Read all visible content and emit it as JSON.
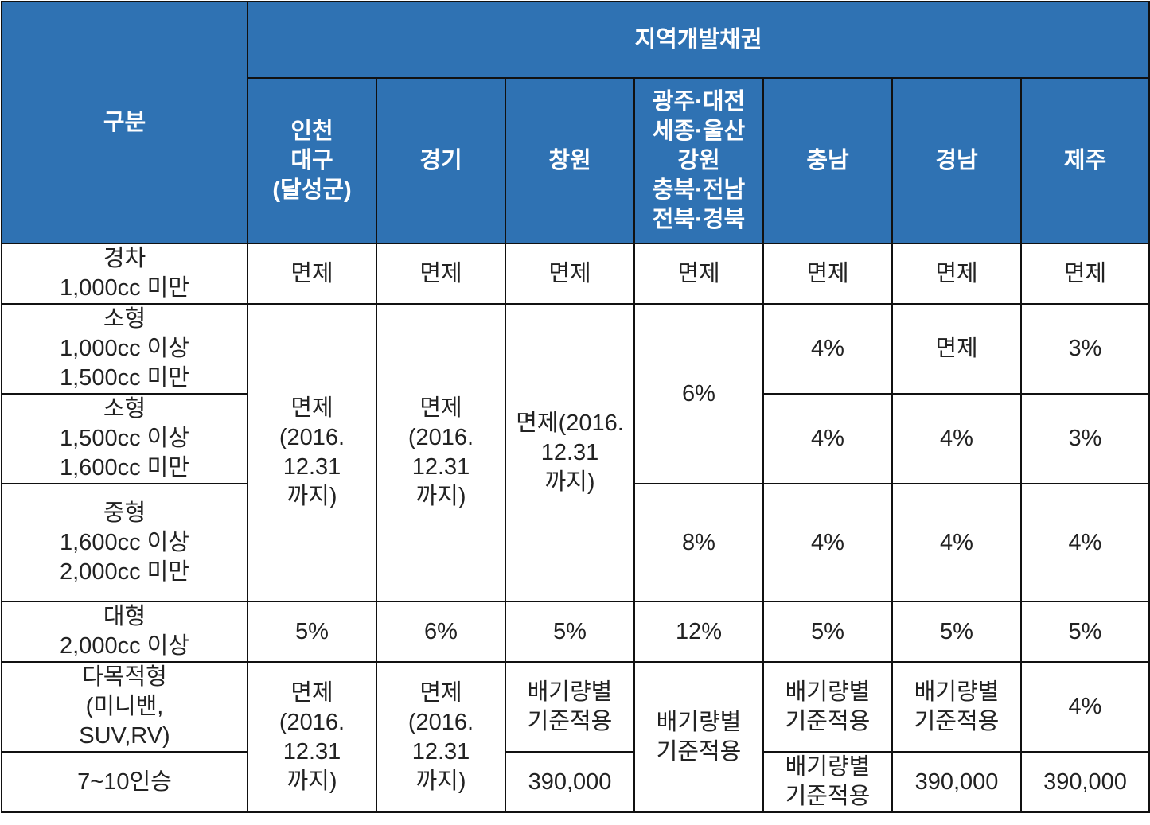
{
  "table": {
    "corner_header": "구분",
    "group_header": "지역개발채권",
    "region_headers": [
      "인천\n대구\n(달성군)",
      "경기",
      "창원",
      "광주·대전\n세종·울산\n강원\n충북·전남\n전북·경북",
      "충남",
      "경남",
      "제주"
    ],
    "row_labels": [
      "경차\n1,000cc 미만",
      "소형\n1,000cc 이상\n 1,500cc 미만",
      "소형\n1,500cc 이상\n 1,600cc 미만",
      "중형\n1,600cc 이상\n 2,000cc 미만",
      "대형\n2,000cc 이상",
      "다목적형\n(미니밴,\nSUV,RV)",
      "7~10인승"
    ],
    "cells": {
      "r0": [
        "면제",
        "면제",
        "면제",
        "면제",
        "면제",
        "면제",
        "면제"
      ],
      "r1_incheon": "면제\n(2016.\n12.31\n까지)",
      "r1_gyeonggi": "면제\n(2016.\n12.31\n까지)",
      "r1_changwon": "면제(2016.\n12.31\n까지)",
      "r1_gwangju": "6%",
      "r1_chungnam": "4%",
      "r1_gyeongnam": "면제",
      "r1_jeju": "3%",
      "r2_chungnam": "4%",
      "r2_gyeongnam": "4%",
      "r2_jeju": "3%",
      "r3_gwangju": "8%",
      "r3_chungnam": "4%",
      "r3_gyeongnam": "4%",
      "r3_jeju": "4%",
      "r4": [
        "5%",
        "6%",
        "5%",
        "12%",
        "5%",
        "5%",
        "5%"
      ],
      "r5_incheon": "면제\n(2016.\n12.31\n까지)",
      "r5_gyeonggi": "면제\n(2016.\n12.31\n까지)",
      "r5_changwon": "배기량별\n기준적용",
      "r5_gwangju": "배기량별\n기준적용",
      "r5_chungnam": "배기량별\n기준적용",
      "r5_gyeongnam": "배기량별\n기준적용",
      "r5_jeju": "4%",
      "r6_changwon": "390,000",
      "r6_chungnam": "배기량별\n기준적용",
      "r6_gyeongnam": "390,000",
      "r6_jeju": "390,000"
    }
  },
  "colors": {
    "header_bg": "#2f72b3",
    "header_text": "#ffffff",
    "border": "#111111"
  }
}
